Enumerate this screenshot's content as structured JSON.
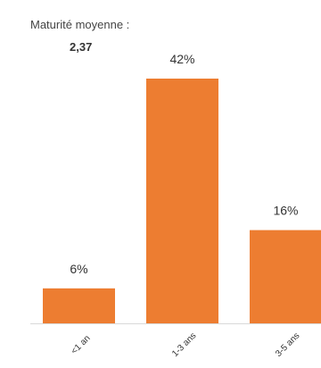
{
  "summary": {
    "label": "Maturité moyenne :",
    "value": "2,37"
  },
  "chart_data": {
    "type": "bar",
    "categories": [
      "<1 an",
      "1-3 ans",
      "3-5 ans"
    ],
    "values": [
      6,
      42,
      16
    ],
    "data_labels": [
      "6%",
      "42%",
      "16%"
    ],
    "unit": "%",
    "ylim": [
      0,
      42
    ],
    "grid": false,
    "colors": {
      "bar": "#ED7D31",
      "baseline": "#D9D9D9",
      "text": "#333333"
    }
  }
}
